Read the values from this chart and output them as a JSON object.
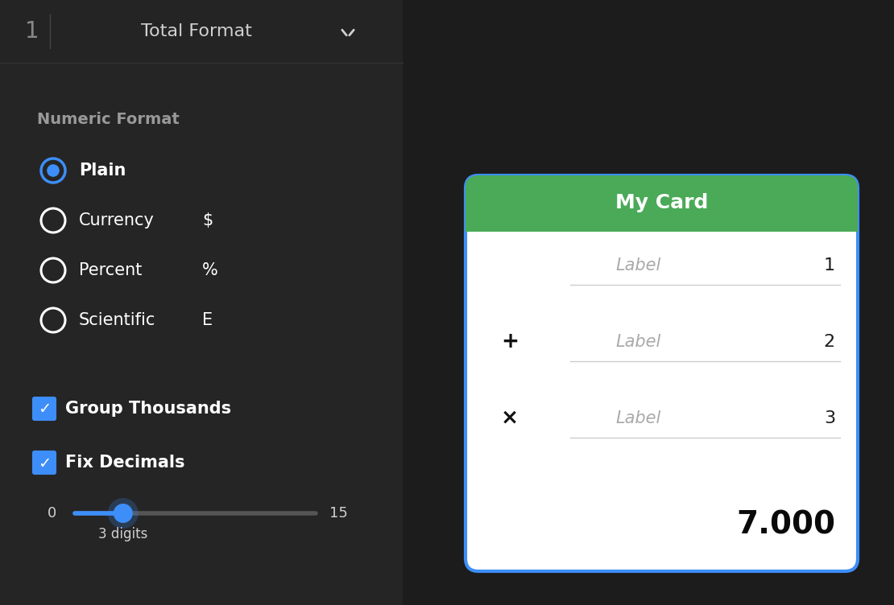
{
  "bg_color": "#1c1c1c",
  "panel_bg": "#252525",
  "header_bg": "#242424",
  "text_light": "#d0d0d0",
  "text_gray": "#888888",
  "text_white": "#ffffff",
  "blue": "#3d8ef8",
  "green": "#4aaa58",
  "card_bg": "#ffffff",
  "card_border": "#3d8ef8",
  "card_header_green": "#4aaa58",
  "header_number": "1",
  "header_title": "Total Format",
  "section_label": "Numeric Format",
  "radio_options": [
    "Plain",
    "Currency",
    "Percent",
    "Scientific"
  ],
  "radio_symbols": [
    "",
    "$",
    "%",
    "E"
  ],
  "radio_selected": 0,
  "checkbox_options": [
    "Group Thousands",
    "Fix Decimals"
  ],
  "checkbox_checked": [
    true,
    true
  ],
  "slider_min": 0,
  "slider_max": 15,
  "slider_value": 3,
  "slider_label": "3 digits",
  "card_title": "My Card",
  "card_rows": [
    {
      "operator": "",
      "label": "Label",
      "value": "1"
    },
    {
      "operator": "+",
      "label": "Label",
      "value": "2"
    },
    {
      "operator": "×",
      "label": "Label",
      "value": "3"
    }
  ],
  "card_total": "7.000"
}
